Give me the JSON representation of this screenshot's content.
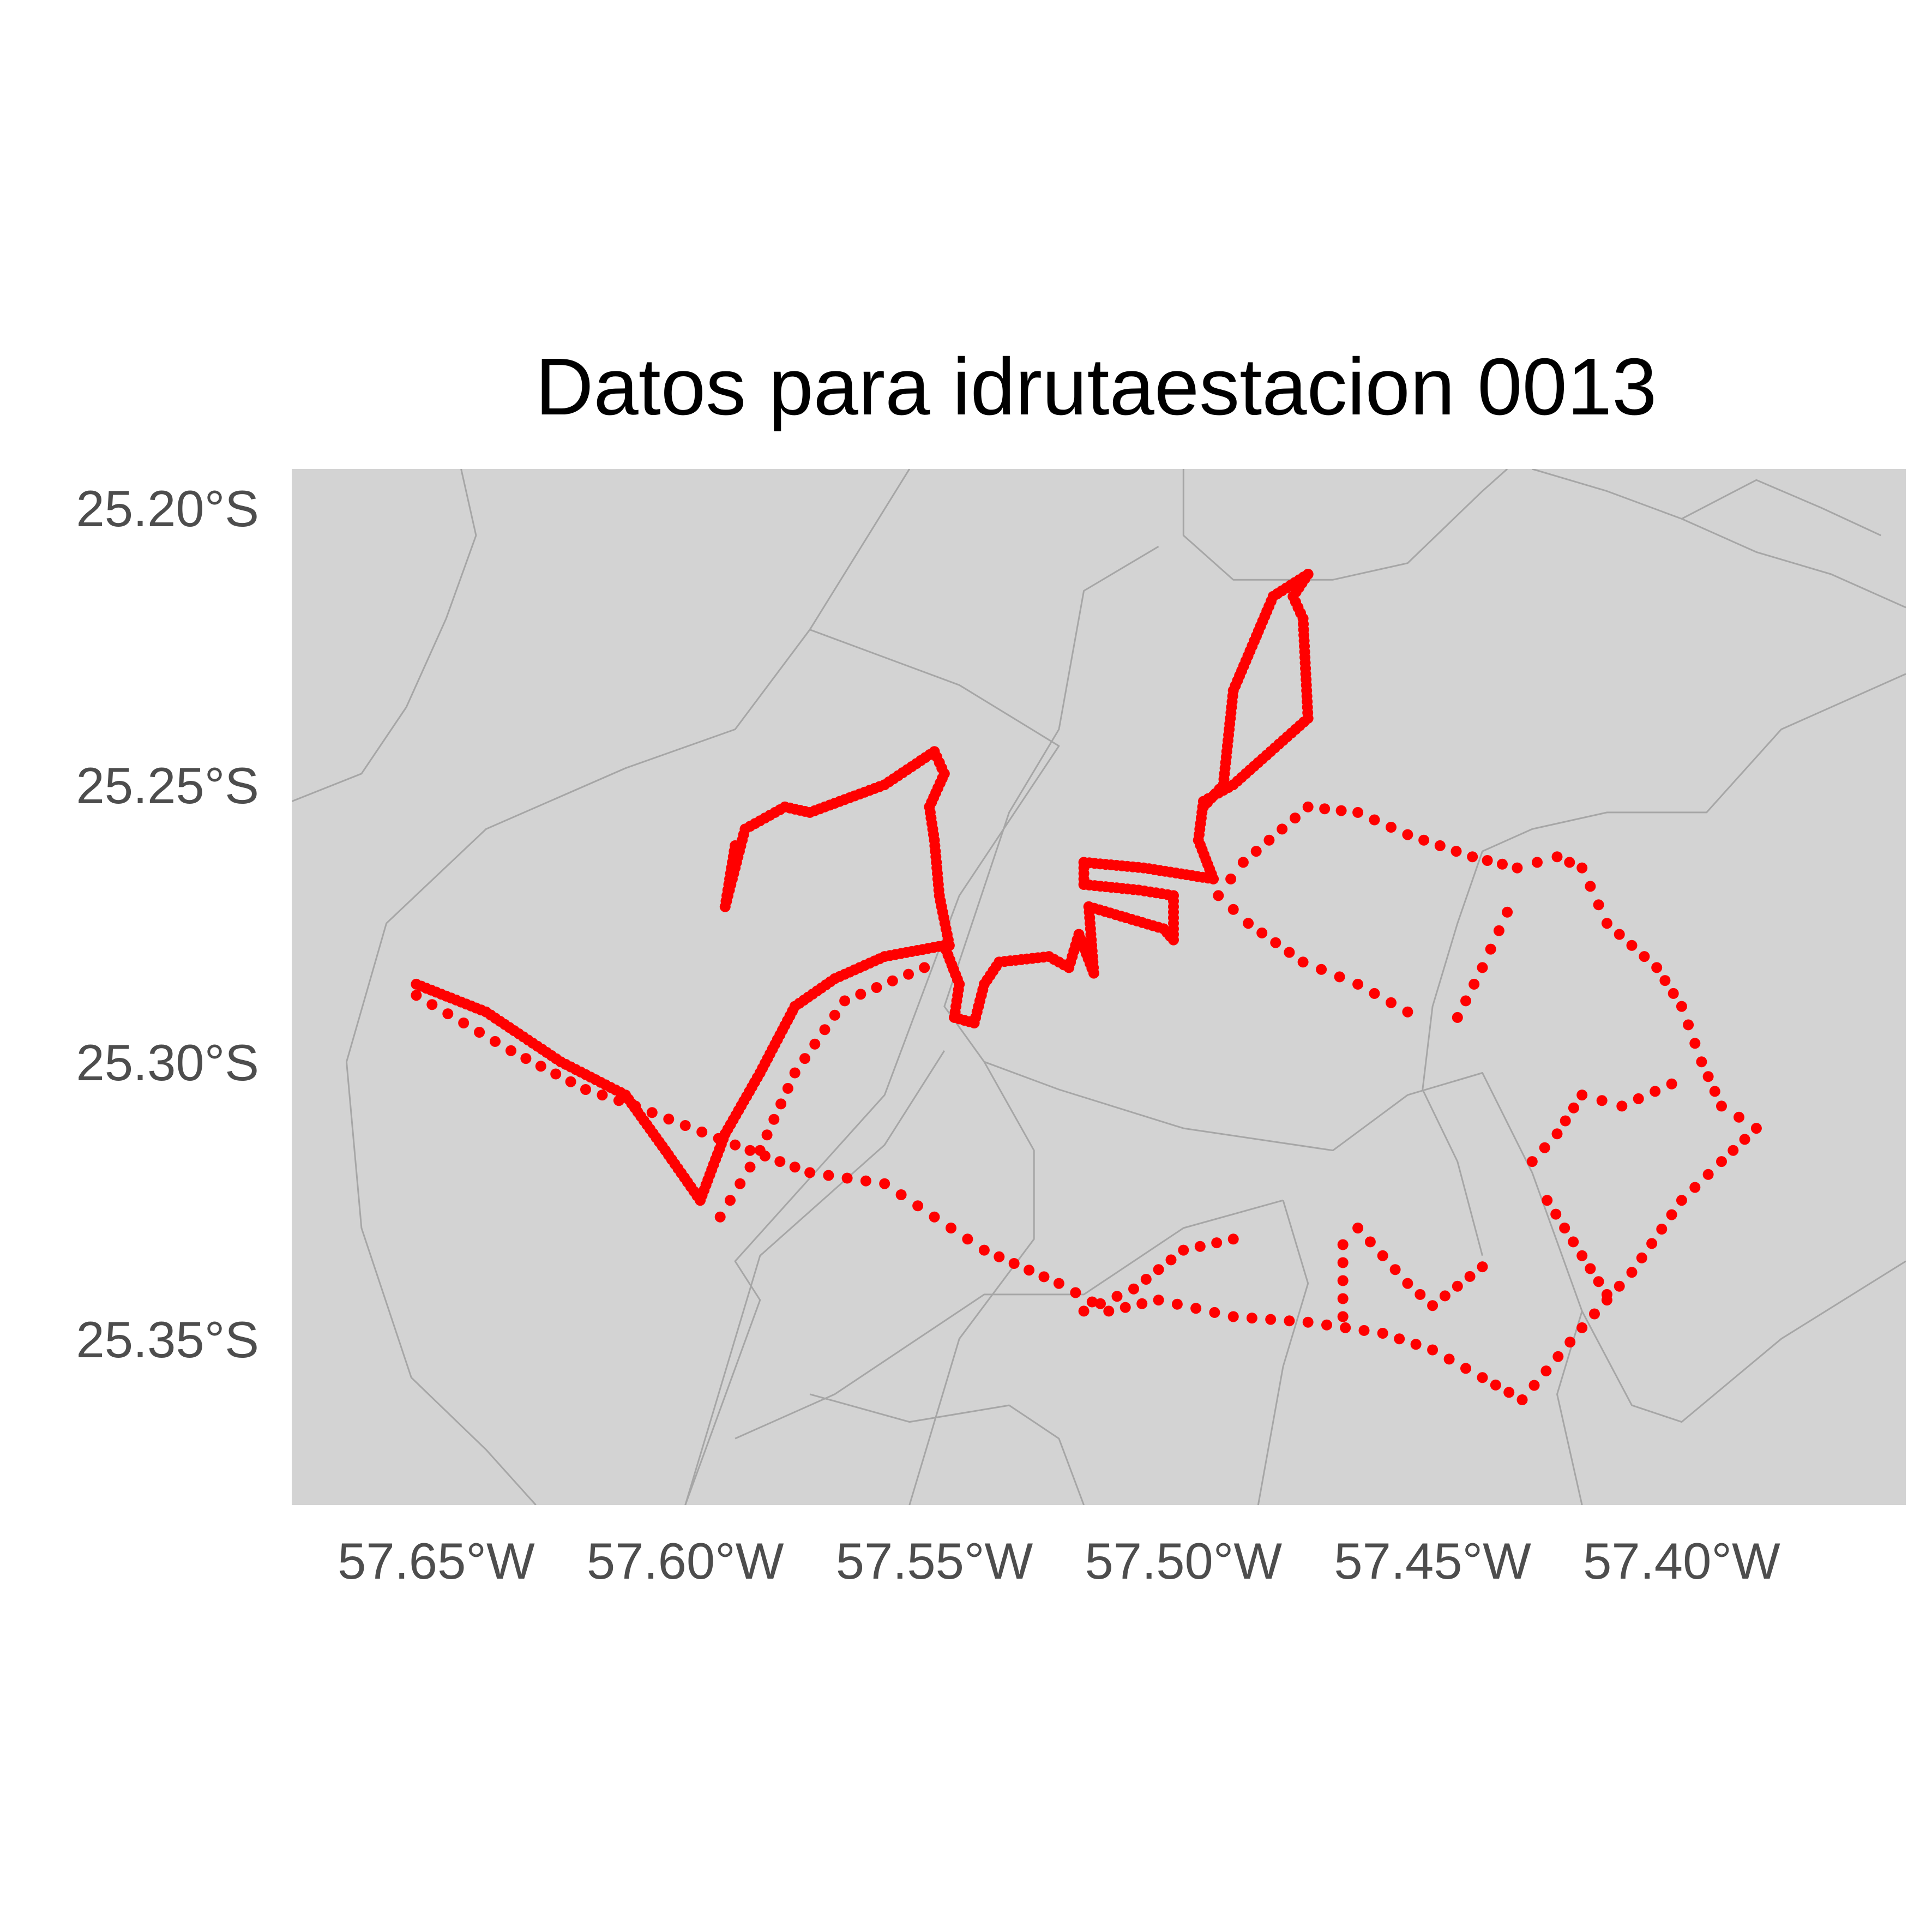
{
  "title": "Datos para idrutaestacion 0013",
  "colors": {
    "land": "#d3d3d3",
    "boundaries": "#a6a6a6",
    "route": "#ff0000",
    "tick_text": "#4d4d4d",
    "title_text": "#000000"
  },
  "chart_data": {
    "type": "scatter",
    "title": "Datos para idrutaestacion 0013",
    "xlim": [
      -57.679,
      -57.355
    ],
    "ylim": [
      -25.38,
      -25.193
    ],
    "x_ticks": [
      {
        "value": -57.65,
        "label": "57.65°W"
      },
      {
        "value": -57.6,
        "label": "57.60°W"
      },
      {
        "value": -57.55,
        "label": "57.55°W"
      },
      {
        "value": -57.5,
        "label": "57.50°W"
      },
      {
        "value": -57.45,
        "label": "57.45°W"
      },
      {
        "value": -57.4,
        "label": "57.40°W"
      }
    ],
    "y_ticks": [
      {
        "value": -25.2,
        "label": "25.20°S"
      },
      {
        "value": -25.25,
        "label": "25.25°S"
      },
      {
        "value": -25.3,
        "label": "25.30°S"
      },
      {
        "value": -25.35,
        "label": "25.35°S"
      }
    ],
    "boundaries": [
      [
        [
          -57.645,
          -25.193
        ],
        [
          -57.642,
          -25.205
        ],
        [
          -57.648,
          -25.22
        ],
        [
          -57.656,
          -25.236
        ],
        [
          -57.665,
          -25.248
        ],
        [
          -57.679,
          -25.253
        ]
      ],
      [
        [
          -57.555,
          -25.193
        ],
        [
          -57.575,
          -25.222
        ],
        [
          -57.59,
          -25.24
        ],
        [
          -57.612,
          -25.247
        ],
        [
          -57.64,
          -25.258
        ],
        [
          -57.66,
          -25.275
        ],
        [
          -57.668,
          -25.3
        ],
        [
          -57.665,
          -25.33
        ],
        [
          -57.655,
          -25.357
        ],
        [
          -57.64,
          -25.37
        ],
        [
          -57.63,
          -25.38
        ]
      ],
      [
        [
          -57.575,
          -25.222
        ],
        [
          -57.545,
          -25.232
        ],
        [
          -57.525,
          -25.243
        ],
        [
          -57.545,
          -25.27
        ],
        [
          -57.56,
          -25.306
        ],
        [
          -57.59,
          -25.336
        ],
        [
          -57.585,
          -25.343
        ],
        [
          -57.6,
          -25.38
        ]
      ],
      [
        [
          -57.5,
          -25.193
        ],
        [
          -57.5,
          -25.205
        ],
        [
          -57.49,
          -25.213
        ],
        [
          -57.47,
          -25.213
        ],
        [
          -57.455,
          -25.21
        ],
        [
          -57.44,
          -25.197
        ],
        [
          -57.435,
          -25.193
        ]
      ],
      [
        [
          -57.505,
          -25.207
        ],
        [
          -57.52,
          -25.215
        ],
        [
          -57.525,
          -25.24
        ],
        [
          -57.535,
          -25.255
        ],
        [
          -57.548,
          -25.29
        ],
        [
          -57.54,
          -25.3
        ],
        [
          -57.525,
          -25.305
        ],
        [
          -57.5,
          -25.312
        ],
        [
          -57.47,
          -25.316
        ],
        [
          -57.455,
          -25.306
        ],
        [
          -57.44,
          -25.302
        ],
        [
          -57.43,
          -25.32
        ],
        [
          -57.42,
          -25.345
        ],
        [
          -57.41,
          -25.362
        ],
        [
          -57.4,
          -25.365
        ],
        [
          -57.38,
          -25.35
        ],
        [
          -57.355,
          -25.336
        ]
      ],
      [
        [
          -57.44,
          -25.262
        ],
        [
          -57.43,
          -25.258
        ],
        [
          -57.415,
          -25.255
        ],
        [
          -57.395,
          -25.255
        ],
        [
          -57.38,
          -25.24
        ],
        [
          -57.355,
          -25.23
        ]
      ],
      [
        [
          -57.44,
          -25.262
        ],
        [
          -57.445,
          -25.275
        ],
        [
          -57.45,
          -25.29
        ],
        [
          -57.452,
          -25.305
        ],
        [
          -57.445,
          -25.318
        ],
        [
          -57.44,
          -25.335
        ]
      ],
      [
        [
          -57.548,
          -25.298
        ],
        [
          -57.56,
          -25.315
        ],
        [
          -57.585,
          -25.335
        ],
        [
          -57.6,
          -25.38
        ]
      ],
      [
        [
          -57.48,
          -25.325
        ],
        [
          -57.5,
          -25.33
        ],
        [
          -57.52,
          -25.342
        ],
        [
          -57.54,
          -25.342
        ],
        [
          -57.57,
          -25.36
        ],
        [
          -57.59,
          -25.368
        ]
      ],
      [
        [
          -57.54,
          -25.3
        ],
        [
          -57.53,
          -25.316
        ],
        [
          -57.53,
          -25.332
        ],
        [
          -57.545,
          -25.35
        ],
        [
          -57.55,
          -25.365
        ],
        [
          -57.555,
          -25.38
        ]
      ],
      [
        [
          -57.48,
          -25.325
        ],
        [
          -57.475,
          -25.34
        ],
        [
          -57.48,
          -25.355
        ],
        [
          -57.485,
          -25.38
        ]
      ],
      [
        [
          -57.42,
          -25.345
        ],
        [
          -57.425,
          -25.36
        ],
        [
          -57.42,
          -25.38
        ]
      ],
      [
        [
          -57.575,
          -25.36
        ],
        [
          -57.555,
          -25.365
        ],
        [
          -57.535,
          -25.362
        ],
        [
          -57.525,
          -25.368
        ],
        [
          -57.52,
          -25.38
        ]
      ],
      [
        [
          -57.43,
          -25.193
        ],
        [
          -57.415,
          -25.197
        ],
        [
          -57.4,
          -25.202
        ],
        [
          -57.385,
          -25.208
        ],
        [
          -57.37,
          -25.212
        ],
        [
          -57.355,
          -25.218
        ]
      ],
      [
        [
          -57.4,
          -25.202
        ],
        [
          -57.385,
          -25.195
        ],
        [
          -57.372,
          -25.2
        ],
        [
          -57.36,
          -25.205
        ]
      ]
    ],
    "series": [
      {
        "segments": [
          [
            [
              -57.654,
              -25.286
            ],
            [
              -57.64,
              -25.291
            ],
            [
              -57.625,
              -25.3
            ],
            [
              -57.612,
              -25.306
            ],
            [
              -57.604,
              -25.316
            ],
            [
              -57.597,
              -25.325
            ],
            [
              -57.592,
              -25.313
            ],
            [
              -57.585,
              -25.302
            ],
            [
              -57.578,
              -25.29
            ],
            [
              -57.57,
              -25.285
            ],
            [
              -57.56,
              -25.281
            ],
            [
              -57.548,
              -25.279
            ],
            [
              -57.545,
              -25.286
            ],
            [
              -57.546,
              -25.292
            ],
            [
              -57.542,
              -25.293
            ],
            [
              -57.54,
              -25.286
            ],
            [
              -57.537,
              -25.282
            ],
            [
              -57.527,
              -25.281
            ],
            [
              -57.523,
              -25.283
            ],
            [
              -57.521,
              -25.277
            ],
            [
              -57.518,
              -25.284
            ],
            [
              -57.519,
              -25.272
            ],
            [
              -57.504,
              -25.276
            ],
            [
              -57.502,
              -25.278
            ],
            [
              -57.502,
              -25.27
            ],
            [
              -57.509,
              -25.269
            ],
            [
              -57.52,
              -25.268
            ],
            [
              -57.52,
              -25.264
            ],
            [
              -57.508,
              -25.265
            ],
            [
              -57.494,
              -25.267
            ],
            [
              -57.497,
              -25.26
            ],
            [
              -57.496,
              -25.253
            ],
            [
              -57.49,
              -25.25
            ],
            [
              -57.475,
              -25.238
            ],
            [
              -57.476,
              -25.22
            ],
            [
              -57.478,
              -25.216
            ],
            [
              -57.475,
              -25.212
            ],
            [
              -57.482,
              -25.216
            ],
            [
              -57.49,
              -25.233
            ],
            [
              -57.492,
              -25.25
            ],
            [
              -57.496,
              -25.254
            ]
          ],
          [
            [
              -57.547,
              -25.279
            ],
            [
              -57.549,
              -25.27
            ],
            [
              -57.55,
              -25.26
            ],
            [
              -57.551,
              -25.254
            ],
            [
              -57.548,
              -25.248
            ],
            [
              -57.55,
              -25.244
            ],
            [
              -57.56,
              -25.25
            ],
            [
              -57.575,
              -25.255
            ],
            [
              -57.58,
              -25.254
            ],
            [
              -57.588,
              -25.258
            ],
            [
              -57.59,
              -25.265
            ],
            [
              -57.592,
              -25.272
            ],
            [
              -57.59,
              -25.261
            ]
          ]
        ]
      },
      {
        "segments": [
          [
            [
              -57.654,
              -25.288
            ],
            [
              -57.635,
              -25.298
            ],
            [
              -57.62,
              -25.305
            ],
            [
              -57.61,
              -25.308
            ],
            [
              -57.59,
              -25.315
            ],
            [
              -57.575,
              -25.32
            ],
            [
              -57.56,
              -25.322
            ],
            [
              -57.55,
              -25.328
            ],
            [
              -57.54,
              -25.334
            ],
            [
              -57.525,
              -25.34
            ],
            [
              -57.515,
              -25.345
            ],
            [
              -57.505,
              -25.343
            ],
            [
              -57.49,
              -25.346
            ],
            [
              -57.475,
              -25.347
            ],
            [
              -57.46,
              -25.349
            ],
            [
              -57.45,
              -25.352
            ],
            [
              -57.44,
              -25.357
            ],
            [
              -57.432,
              -25.361
            ],
            [
              -57.42,
              -25.348
            ],
            [
              -57.41,
              -25.338
            ],
            [
              -57.4,
              -25.325
            ],
            [
              -57.392,
              -25.318
            ],
            [
              -57.385,
              -25.312
            ],
            [
              -57.392,
              -25.308
            ],
            [
              -57.396,
              -25.3
            ],
            [
              -57.4,
              -25.29
            ],
            [
              -57.405,
              -25.283
            ],
            [
              -57.415,
              -25.275
            ],
            [
              -57.42,
              -25.265
            ],
            [
              -57.425,
              -25.263
            ],
            [
              -57.433,
              -25.265
            ],
            [
              -57.442,
              -25.263
            ],
            [
              -57.455,
              -25.259
            ],
            [
              -57.465,
              -25.255
            ],
            [
              -57.475,
              -25.254
            ],
            [
              -57.488,
              -25.264
            ],
            [
              -57.493,
              -25.27
            ],
            [
              -57.487,
              -25.275
            ],
            [
              -57.476,
              -25.282
            ],
            [
              -57.465,
              -25.286
            ],
            [
              -57.455,
              -25.291
            ]
          ],
          [
            [
              -57.593,
              -25.328
            ],
            [
              -57.585,
              -25.316
            ],
            [
              -57.578,
              -25.302
            ],
            [
              -57.568,
              -25.289
            ],
            [
              -57.552,
              -25.283
            ]
          ],
          [
            [
              -57.52,
              -25.345
            ],
            [
              -57.51,
              -25.341
            ],
            [
              -57.5,
              -25.334
            ],
            [
              -57.49,
              -25.332
            ]
          ],
          [
            [
              -57.468,
              -25.346
            ],
            [
              -57.468,
              -25.333
            ],
            [
              -57.465,
              -25.33
            ],
            [
              -57.46,
              -25.335
            ],
            [
              -57.455,
              -25.34
            ],
            [
              -57.45,
              -25.344
            ],
            [
              -57.44,
              -25.337
            ]
          ],
          [
            [
              -57.445,
              -25.292
            ],
            [
              -57.44,
              -25.283
            ],
            [
              -57.435,
              -25.273
            ]
          ],
          [
            [
              -57.43,
              -25.318
            ],
            [
              -57.425,
              -25.313
            ],
            [
              -57.42,
              -25.306
            ],
            [
              -57.412,
              -25.308
            ],
            [
              -57.402,
              -25.304
            ]
          ],
          [
            [
              -57.427,
              -25.325
            ],
            [
              -57.42,
              -25.335
            ],
            [
              -57.415,
              -25.342
            ]
          ]
        ]
      }
    ]
  }
}
